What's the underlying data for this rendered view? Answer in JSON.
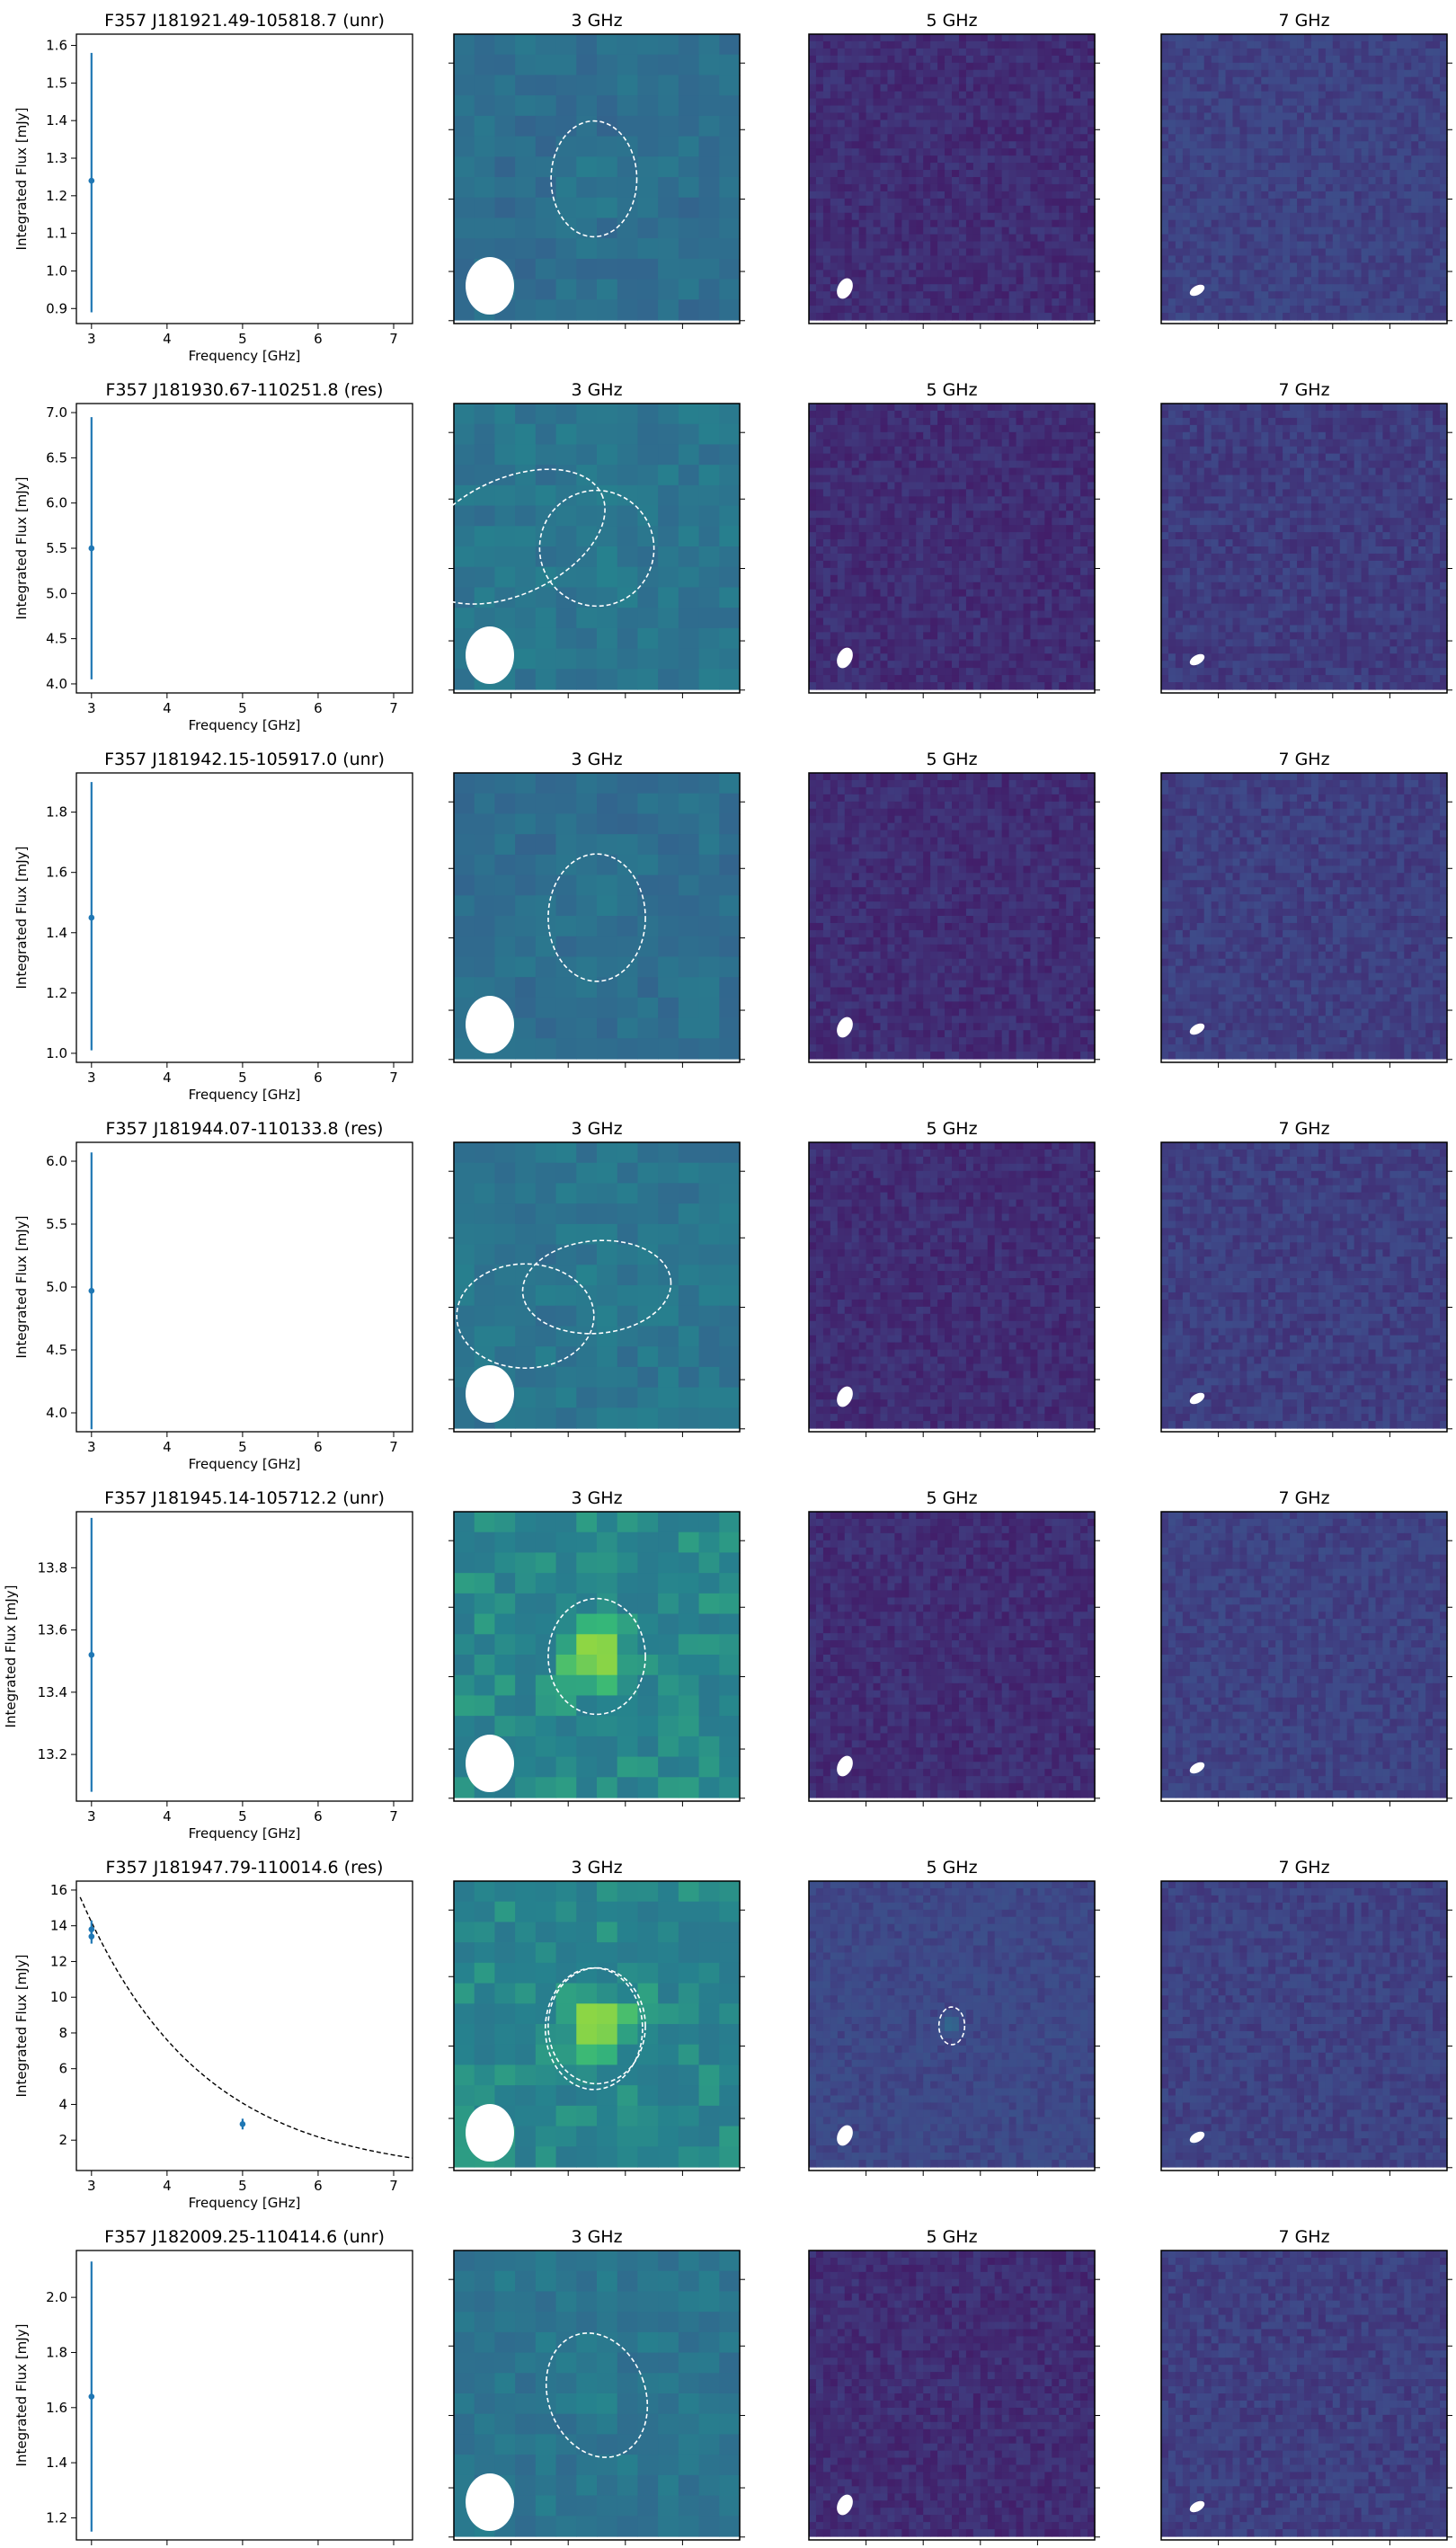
{
  "chart_data": {
    "type": "grid",
    "panel_titles": [
      "3 GHz",
      "5 GHz",
      "7 GHz"
    ],
    "xlabel": "Frequency [GHz]",
    "ylabel": "Integrated Flux [mJy]",
    "xlim": [
      2.8,
      7.25
    ],
    "xticks": [
      3,
      4,
      5,
      6,
      7
    ],
    "rows": [
      {
        "title": "F357 J181921.49-105818.7 (unr)",
        "spectrum": {
          "type": "scatter",
          "x": [
            3
          ],
          "y": [
            1.24
          ],
          "yerr": [
            [
              0.35,
              0.34
            ]
          ]
        },
        "ylim": [
          0.86,
          1.63
        ],
        "yticks": [
          0.9,
          1.0,
          1.1,
          1.2,
          1.3,
          1.4,
          1.5,
          1.6
        ],
        "image_brightness": [
          0.45,
          0.12,
          0.18
        ],
        "ellipses_3ghz": [
          {
            "cx": 0.49,
            "cy": 0.5,
            "rx": 0.15,
            "ry": 0.2,
            "angle": 0
          }
        ],
        "ellipses_5ghz": []
      },
      {
        "title": "F357 J181930.67-110251.8 (res)",
        "spectrum": {
          "type": "scatter",
          "x": [
            3
          ],
          "y": [
            5.5
          ],
          "yerr": [
            [
              1.45,
              1.45
            ]
          ]
        },
        "ylim": [
          3.9,
          7.1
        ],
        "yticks": [
          4.0,
          4.5,
          5.0,
          5.5,
          6.0,
          6.5,
          7.0
        ],
        "image_brightness": [
          0.5,
          0.12,
          0.16
        ],
        "ellipses_3ghz": [
          {
            "cx": 0.2,
            "cy": 0.46,
            "rx": 0.35,
            "ry": 0.2,
            "angle": -25
          },
          {
            "cx": 0.5,
            "cy": 0.5,
            "rx": 0.2,
            "ry": 0.2,
            "angle": -10
          }
        ],
        "ellipses_5ghz": []
      },
      {
        "title": "F357 J181942.15-105917.0 (unr)",
        "spectrum": {
          "type": "scatter",
          "x": [
            3
          ],
          "y": [
            1.45
          ],
          "yerr": [
            [
              0.44,
              0.45
            ]
          ]
        },
        "ylim": [
          0.97,
          1.93
        ],
        "yticks": [
          1.0,
          1.2,
          1.4,
          1.6,
          1.8
        ],
        "image_brightness": [
          0.45,
          0.12,
          0.17
        ],
        "ellipses_3ghz": [
          {
            "cx": 0.5,
            "cy": 0.5,
            "rx": 0.17,
            "ry": 0.22,
            "angle": 0
          }
        ],
        "ellipses_5ghz": []
      },
      {
        "title": "F357 J181944.07-110133.8 (res)",
        "spectrum": {
          "type": "scatter",
          "x": [
            3
          ],
          "y": [
            4.97
          ],
          "yerr": [
            [
              1.1,
              1.1
            ]
          ]
        },
        "ylim": [
          3.85,
          6.15
        ],
        "yticks": [
          4.0,
          4.5,
          5.0,
          5.5,
          6.0
        ],
        "image_brightness": [
          0.5,
          0.12,
          0.17
        ],
        "ellipses_3ghz": [
          {
            "cx": 0.25,
            "cy": 0.6,
            "rx": 0.24,
            "ry": 0.18,
            "angle": 0
          },
          {
            "cx": 0.5,
            "cy": 0.5,
            "rx": 0.26,
            "ry": 0.16,
            "angle": -5
          }
        ],
        "ellipses_5ghz": []
      },
      {
        "title": "F357 J181945.14-105712.2 (unr)",
        "spectrum": {
          "type": "scatter",
          "x": [
            3
          ],
          "y": [
            13.52
          ],
          "yerr": [
            [
              0.44,
              0.44
            ]
          ]
        },
        "ylim": [
          13.05,
          13.98
        ],
        "yticks": [
          13.2,
          13.4,
          13.6,
          13.8
        ],
        "image_brightness": [
          0.6,
          0.12,
          0.18
        ],
        "ellipses_3ghz": [
          {
            "cx": 0.5,
            "cy": 0.5,
            "rx": 0.17,
            "ry": 0.2,
            "angle": 0
          }
        ],
        "ellipses_5ghz": []
      },
      {
        "title": "F357 J181947.79-110014.6 (res)",
        "spectrum": {
          "type": "scatter+fit",
          "x": [
            3,
            3,
            5
          ],
          "y": [
            13.8,
            13.4,
            2.9
          ],
          "yerr": [
            [
              0.5,
              0.5
            ],
            [
              0.4,
              0.4
            ],
            [
              0.3,
              0.3
            ]
          ],
          "fit": {
            "style": "dashed",
            "x_start": 2.85,
            "x_end": 7.25,
            "y_at_start": 15.6,
            "y_at_end": 1.0
          }
        },
        "ylim": [
          0.3,
          16.5
        ],
        "yticks": [
          2,
          4,
          6,
          8,
          10,
          12,
          14,
          16
        ],
        "image_brightness": [
          0.6,
          0.2,
          0.18
        ],
        "ellipses_3ghz": [
          {
            "cx": 0.5,
            "cy": 0.5,
            "rx": 0.17,
            "ry": 0.2,
            "angle": 0
          },
          {
            "cx": 0.49,
            "cy": 0.51,
            "rx": 0.17,
            "ry": 0.21,
            "angle": 0
          }
        ],
        "ellipses_5ghz": [
          {
            "cx": 0.5,
            "cy": 0.5,
            "rx": 0.045,
            "ry": 0.065,
            "angle": 0
          }
        ]
      },
      {
        "title": "F357 J182009.25-110414.6 (unr)",
        "spectrum": {
          "type": "scatter",
          "x": [
            3
          ],
          "y": [
            1.64
          ],
          "yerr": [
            [
              0.49,
              0.49
            ]
          ]
        },
        "ylim": [
          1.12,
          2.17
        ],
        "yticks": [
          1.2,
          1.4,
          1.6,
          1.8,
          2.0
        ],
        "image_brightness": [
          0.5,
          0.12,
          0.17
        ],
        "ellipses_3ghz": [
          {
            "cx": 0.5,
            "cy": 0.5,
            "rx": 0.17,
            "ry": 0.22,
            "angle": -20
          }
        ],
        "ellipses_5ghz": []
      }
    ]
  },
  "colors": {
    "marker": "#1f77b4",
    "ellipse": "#ffffff",
    "beam": "#ffffff",
    "frame": "#000000",
    "cmap_low": "#3b4d8c",
    "cmap_mid": "#2a8a8a",
    "cmap_high": "#8ad447"
  }
}
